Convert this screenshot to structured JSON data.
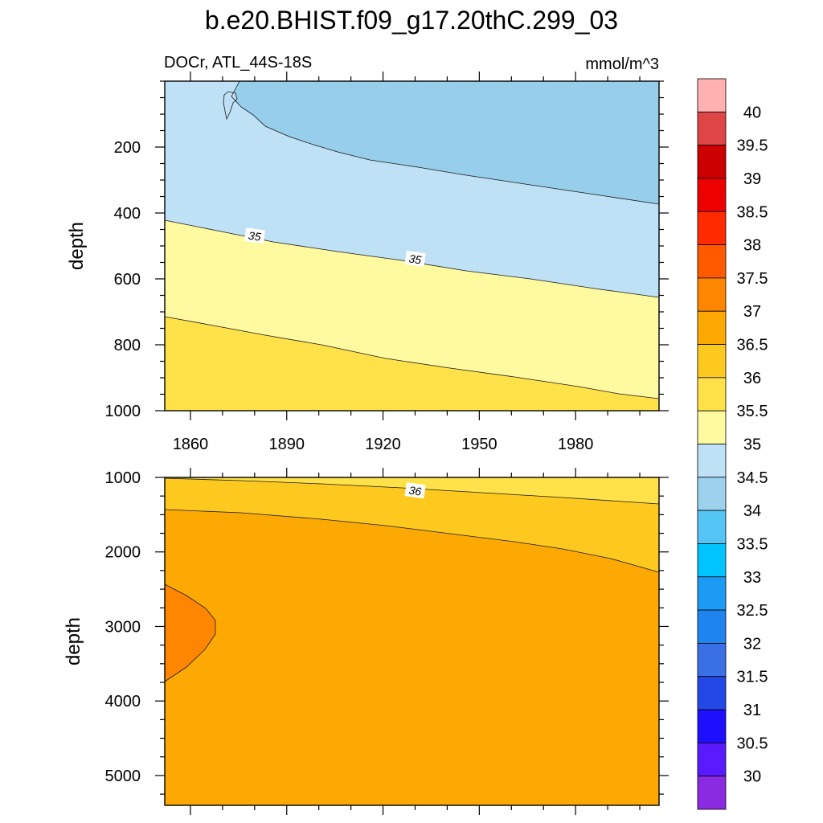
{
  "title": "b.e20.BHIST.f09_g17.20thC.299_03",
  "chart_data": {
    "type": "contour",
    "variable_label": "DOCr, ATL_44S-18S",
    "units": "mmol/m^3",
    "x_axis": {
      "range": [
        1852,
        2006
      ],
      "tick_labels": [
        "1860",
        "1890",
        "1920",
        "1950",
        "1980"
      ],
      "tick_values": [
        1860,
        1890,
        1920,
        1950,
        1980
      ]
    },
    "colorbar": {
      "levels": [
        "30",
        "30.5",
        "31",
        "31.5",
        "32",
        "32.5",
        "33",
        "33.5",
        "34",
        "34.5",
        "35",
        "35.5",
        "36",
        "36.5",
        "37",
        "37.5",
        "38",
        "38.5",
        "39",
        "39.5",
        "40"
      ],
      "colors": [
        "#8a2be2",
        "#5a1aff",
        "#1e10ff",
        "#2448e6",
        "#3a70e6",
        "#1e84f0",
        "#1c9bf4",
        "#00c4ff",
        "#55c5f5",
        "#9dd2ee",
        "#bee1f5",
        "#fff9a0",
        "#ffe24a",
        "#fdc91f",
        "#fca903",
        "#fe8600",
        "#ff5a00",
        "#ff2a00",
        "#ee0000",
        "#cc0000",
        "#e04545",
        "#ffb0b0"
      ]
    },
    "panels": [
      {
        "name": "upper",
        "ylabel": "depth",
        "y_range": [
          0,
          1000
        ],
        "y_tick_labels": [
          "200",
          "400",
          "600",
          "800",
          "1000"
        ],
        "y_tick_values": [
          200,
          400,
          600,
          800,
          1000
        ],
        "contour_labels": [
          {
            "text": "35",
            "year": 1880,
            "depth": 470
          },
          {
            "text": "35",
            "year": 1930,
            "depth": 540
          }
        ],
        "filled_regions": [
          "34-34.5 (top right, deepening from ~60 m in 1870 to ~370 m in 2002)",
          "34.5-35",
          "35-35.5",
          "35.5-36 (below ~720 m in 1852 to ~960 m in 2002)"
        ]
      },
      {
        "name": "lower",
        "ylabel": "depth",
        "y_range": [
          1000,
          5400
        ],
        "y_tick_labels": [
          "1000",
          "2000",
          "3000",
          "4000",
          "5000"
        ],
        "y_tick_values": [
          1000,
          2000,
          3000,
          4000,
          5000
        ],
        "contour_labels": [
          {
            "text": "36",
            "year": 1930,
            "depth": 1180
          }
        ],
        "filled_regions": [
          "35.5-36 (thin top band)",
          "36-36.5",
          "36.5-37 (bulk of deep ocean)",
          "37-37.5 (left-edge pocket, ~2400-3700 m)"
        ]
      }
    ]
  }
}
